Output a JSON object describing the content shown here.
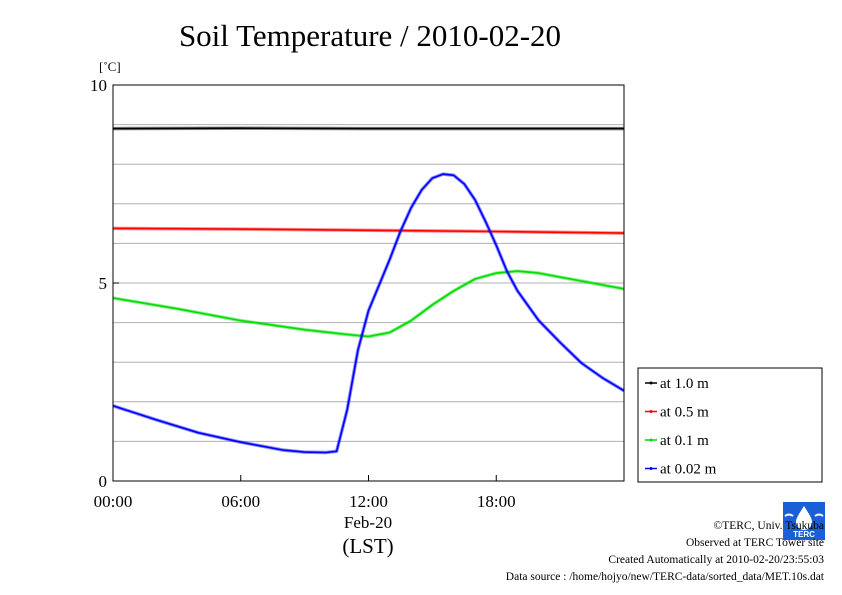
{
  "chart_data": {
    "type": "line",
    "title": "Soil Temperature / 2010-02-20",
    "unit_label": "[˚C]",
    "ylim": [
      0,
      10
    ],
    "y_ticks": [
      0,
      5,
      10
    ],
    "xlim_hours": [
      0,
      24
    ],
    "x_ticks": [
      {
        "hour": 0,
        "label": "00:00"
      },
      {
        "hour": 6,
        "label": "06:00"
      },
      {
        "hour": 12,
        "label": "12:00"
      },
      {
        "hour": 18,
        "label": "18:00"
      }
    ],
    "date_label": "Feb-20",
    "timezone_label": "(LST)",
    "grid": "horizontal, every 1 ˚C",
    "legend_position": "right, lower",
    "series": [
      {
        "name": "at 1.0 m",
        "color": "#000000",
        "points": [
          [
            0,
            8.9
          ],
          [
            6,
            8.91
          ],
          [
            12,
            8.9
          ],
          [
            18,
            8.9
          ],
          [
            24,
            8.9
          ]
        ]
      },
      {
        "name": "at 0.5 m",
        "color": "#ff0000",
        "points": [
          [
            0,
            6.38
          ],
          [
            6,
            6.36
          ],
          [
            12,
            6.33
          ],
          [
            18,
            6.3
          ],
          [
            24,
            6.26
          ]
        ]
      },
      {
        "name": "at 0.1 m",
        "color": "#00dd00",
        "points": [
          [
            0,
            4.62
          ],
          [
            3,
            4.35
          ],
          [
            6,
            4.05
          ],
          [
            9,
            3.82
          ],
          [
            11,
            3.7
          ],
          [
            12,
            3.65
          ],
          [
            13,
            3.75
          ],
          [
            14,
            4.05
          ],
          [
            15,
            4.45
          ],
          [
            16,
            4.8
          ],
          [
            17,
            5.1
          ],
          [
            18,
            5.25
          ],
          [
            19,
            5.3
          ],
          [
            20,
            5.25
          ],
          [
            21,
            5.15
          ],
          [
            22,
            5.05
          ],
          [
            23,
            4.95
          ],
          [
            24,
            4.85
          ]
        ]
      },
      {
        "name": "at 0.02 m",
        "color": "#0000ff",
        "points": [
          [
            0,
            1.9
          ],
          [
            2,
            1.55
          ],
          [
            4,
            1.22
          ],
          [
            6,
            0.98
          ],
          [
            8,
            0.78
          ],
          [
            9,
            0.73
          ],
          [
            10,
            0.72
          ],
          [
            10.5,
            0.75
          ],
          [
            11,
            1.8
          ],
          [
            11.5,
            3.3
          ],
          [
            12,
            4.3
          ],
          [
            13,
            5.6
          ],
          [
            13.5,
            6.3
          ],
          [
            14,
            6.9
          ],
          [
            14.5,
            7.35
          ],
          [
            15,
            7.65
          ],
          [
            15.5,
            7.75
          ],
          [
            16,
            7.72
          ],
          [
            16.5,
            7.5
          ],
          [
            17,
            7.1
          ],
          [
            17.5,
            6.55
          ],
          [
            18,
            5.95
          ],
          [
            18.5,
            5.3
          ],
          [
            19,
            4.8
          ],
          [
            20,
            4.05
          ],
          [
            21,
            3.5
          ],
          [
            22,
            2.98
          ],
          [
            23,
            2.6
          ],
          [
            24,
            2.28
          ]
        ]
      }
    ]
  },
  "credits": {
    "copyright": "©TERC, Univ. Tsukuba",
    "site": "Observed at TERC Tower site",
    "created": "Created Automatically at 2010-02-20/23:55:03",
    "source": "Data source : /home/hojyo/new/TERC-data/sorted_data/MET.10s.dat"
  },
  "logo": {
    "text": "TERC",
    "color": "#1a5fd6"
  }
}
